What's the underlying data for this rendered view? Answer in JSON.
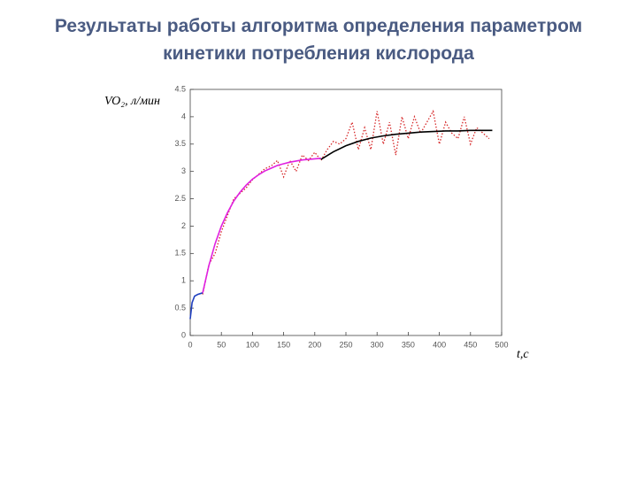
{
  "chart_data": {
    "type": "line",
    "title": "Результаты работы алгоритма определения параметром кинетики потребления кислорода",
    "y_label": "VO₂, л/мин",
    "x_label": "t,c",
    "xlim": [
      0,
      500
    ],
    "ylim": [
      0,
      4.5
    ],
    "xticks": [
      0,
      50,
      100,
      150,
      200,
      250,
      300,
      350,
      400,
      450,
      500
    ],
    "yticks": [
      0,
      0.5,
      1,
      1.5,
      2,
      2.5,
      3,
      3.5,
      4,
      4.5
    ],
    "grid": false,
    "series": [
      {
        "color": "#d62728",
        "style": "dotted",
        "x": [
          20,
          30,
          40,
          50,
          60,
          70,
          80,
          90,
          100,
          110,
          120,
          130,
          140,
          150,
          160,
          170,
          180,
          190,
          200,
          210,
          220,
          230,
          240,
          250,
          260,
          270,
          280,
          290,
          300,
          310,
          320,
          330,
          340,
          350,
          360,
          370,
          380,
          390,
          400,
          410,
          420,
          430,
          440,
          450,
          460,
          470,
          480
        ],
        "values": [
          0.75,
          1.3,
          1.5,
          1.9,
          2.2,
          2.5,
          2.6,
          2.7,
          2.85,
          2.95,
          3.05,
          3.1,
          3.2,
          2.9,
          3.2,
          3.0,
          3.3,
          3.2,
          3.35,
          3.2,
          3.4,
          3.55,
          3.5,
          3.6,
          3.9,
          3.4,
          3.8,
          3.4,
          4.1,
          3.5,
          3.9,
          3.3,
          4.0,
          3.6,
          4.0,
          3.7,
          3.9,
          4.1,
          3.5,
          3.9,
          3.7,
          3.6,
          4.0,
          3.5,
          3.8,
          3.7,
          3.6
        ]
      },
      {
        "color": "#1f3fbf",
        "style": "solid",
        "x": [
          0,
          3,
          7,
          12,
          20
        ],
        "values": [
          0.3,
          0.6,
          0.72,
          0.75,
          0.78
        ]
      },
      {
        "color": "#e020e0",
        "style": "solid",
        "x": [
          20,
          30,
          40,
          50,
          60,
          70,
          80,
          90,
          100,
          110,
          120,
          130,
          140,
          150,
          160,
          170,
          180,
          190,
          200,
          210
        ],
        "values": [
          0.78,
          1.28,
          1.68,
          2.0,
          2.25,
          2.46,
          2.62,
          2.75,
          2.86,
          2.94,
          3.01,
          3.06,
          3.11,
          3.14,
          3.17,
          3.19,
          3.21,
          3.22,
          3.23,
          3.24
        ]
      },
      {
        "color": "#000000",
        "style": "solid",
        "x": [
          210,
          230,
          250,
          270,
          290,
          310,
          330,
          350,
          370,
          390,
          410,
          430,
          450,
          470,
          485
        ],
        "values": [
          3.22,
          3.36,
          3.47,
          3.55,
          3.61,
          3.65,
          3.68,
          3.7,
          3.72,
          3.73,
          3.74,
          3.74,
          3.75,
          3.75,
          3.75
        ]
      }
    ]
  }
}
